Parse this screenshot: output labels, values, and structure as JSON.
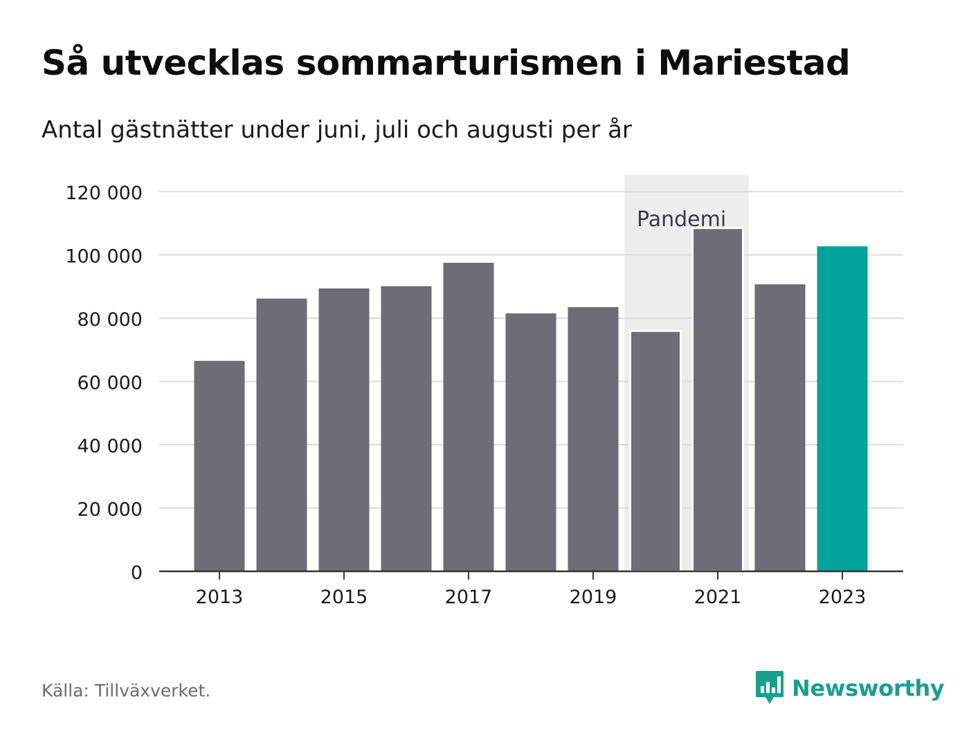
{
  "header": {
    "title": "Så utvecklas sommarturismen i Mariestad",
    "subtitle": "Antal gästnätter under juni, juli och augusti per år"
  },
  "footer": {
    "source": "Källa: Tillväxverket.",
    "brand": "Newsworthy"
  },
  "colors": {
    "bar": "#6e6d75",
    "highlight": "#00a49a",
    "band": "#ededed",
    "grid": "#dcdcdc",
    "axis": "#333333",
    "brand": "#1a9e8f"
  },
  "chart_data": {
    "type": "bar",
    "title": "Så utvecklas sommarturismen i Mariestad",
    "subtitle": "Antal gästnätter under juni, juli och augusti per år",
    "categories": [
      "2013",
      "2014",
      "2015",
      "2016",
      "2017",
      "2018",
      "2019",
      "2020",
      "2021",
      "2022",
      "2023"
    ],
    "values": [
      66500,
      86200,
      89400,
      90100,
      97500,
      81500,
      83500,
      76000,
      108500,
      90700,
      102700
    ],
    "highlight_category": "2023",
    "x_tick_labels": [
      "2013",
      "2015",
      "2017",
      "2019",
      "2021",
      "2023"
    ],
    "y_ticks": [
      0,
      20000,
      40000,
      60000,
      80000,
      100000,
      120000
    ],
    "y_tick_labels": [
      "0",
      "20 000",
      "40 000",
      "60 000",
      "80 000",
      "100 000",
      "120 000"
    ],
    "ylim": [
      0,
      120000
    ],
    "grid": true,
    "annotation": {
      "label": "Pandemi",
      "from": "2020",
      "to": "2021"
    }
  }
}
